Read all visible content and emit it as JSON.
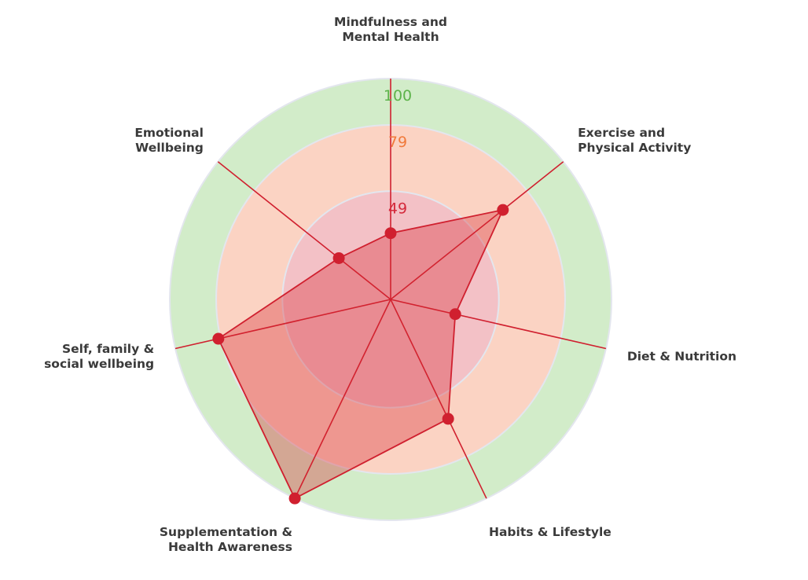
{
  "chart_data": {
    "type": "radar",
    "max": 100,
    "axes": [
      {
        "label_lines": [
          "Mindfulness and",
          "Mental Health"
        ],
        "value": 30
      },
      {
        "label_lines": [
          "Exercise and",
          "Physical Activity"
        ],
        "value": 65
      },
      {
        "label_lines": [
          "Diet & Nutrition"
        ],
        "value": 30
      },
      {
        "label_lines": [
          "Habits & Lifestyle"
        ],
        "value": 60
      },
      {
        "label_lines": [
          "Supplementation &",
          "Health Awareness"
        ],
        "value": 100
      },
      {
        "label_lines": [
          "Self, family &",
          "social wellbeing"
        ],
        "value": 80
      },
      {
        "label_lines": [
          "Emotional",
          "Wellbeing"
        ],
        "value": 30
      }
    ],
    "bands": [
      {
        "value": 100,
        "label": "100",
        "fill": "#d2ecc9",
        "label_color": "#5db34a"
      },
      {
        "value": 79,
        "label": "79",
        "fill": "#fbd3c3",
        "label_color": "#f07a3c"
      },
      {
        "value": 49,
        "label": "49",
        "fill": "#f3c1c6",
        "label_color": "#d42a3c"
      }
    ],
    "series_color": "#d0202f",
    "series_fill": "rgba(215,40,50,0.35)"
  }
}
